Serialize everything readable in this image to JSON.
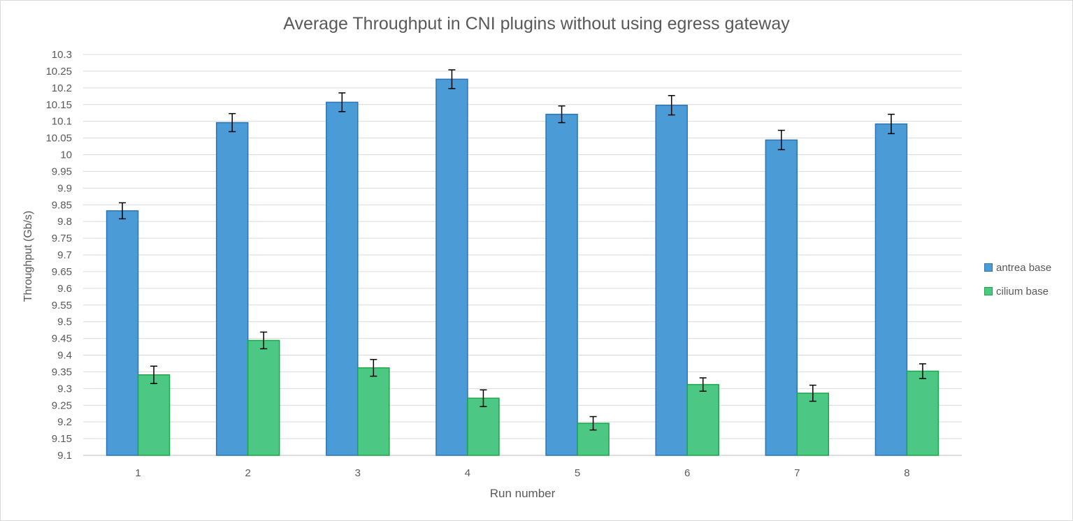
{
  "chart_data": {
    "type": "bar",
    "title": "Average Throughput in CNI plugins without using egress gateway",
    "xlabel": "Run number",
    "ylabel": "Throughput (Gb/s)",
    "categories": [
      "1",
      "2",
      "3",
      "4",
      "5",
      "6",
      "7",
      "8"
    ],
    "ylim": [
      9.1,
      10.3
    ],
    "yticks": [
      "9.1",
      "9.15",
      "9.2",
      "9.25",
      "9.3",
      "9.35",
      "9.4",
      "9.45",
      "9.5",
      "9.55",
      "9.6",
      "9.65",
      "9.7",
      "9.75",
      "9.8",
      "9.85",
      "9.9",
      "9.95",
      "10",
      "10.05",
      "10.1",
      "10.15",
      "10.2",
      "10.25",
      "10.3"
    ],
    "grid": true,
    "legend_position": "right",
    "error_bars": true,
    "series": [
      {
        "name": "antrea base",
        "color": "#4a9bd6",
        "stroke": "#2e75b6",
        "values": [
          9.832,
          10.096,
          10.157,
          10.226,
          10.121,
          10.148,
          10.044,
          10.092
        ],
        "errors": [
          0.024,
          0.027,
          0.028,
          0.028,
          0.025,
          0.029,
          0.029,
          0.029
        ]
      },
      {
        "name": "cilium base",
        "color": "#4dc884",
        "stroke": "#1ba64a",
        "values": [
          9.341,
          9.444,
          9.362,
          9.271,
          9.196,
          9.312,
          9.286,
          9.352
        ],
        "errors": [
          0.026,
          0.025,
          0.025,
          0.025,
          0.02,
          0.02,
          0.024,
          0.022
        ]
      }
    ]
  }
}
